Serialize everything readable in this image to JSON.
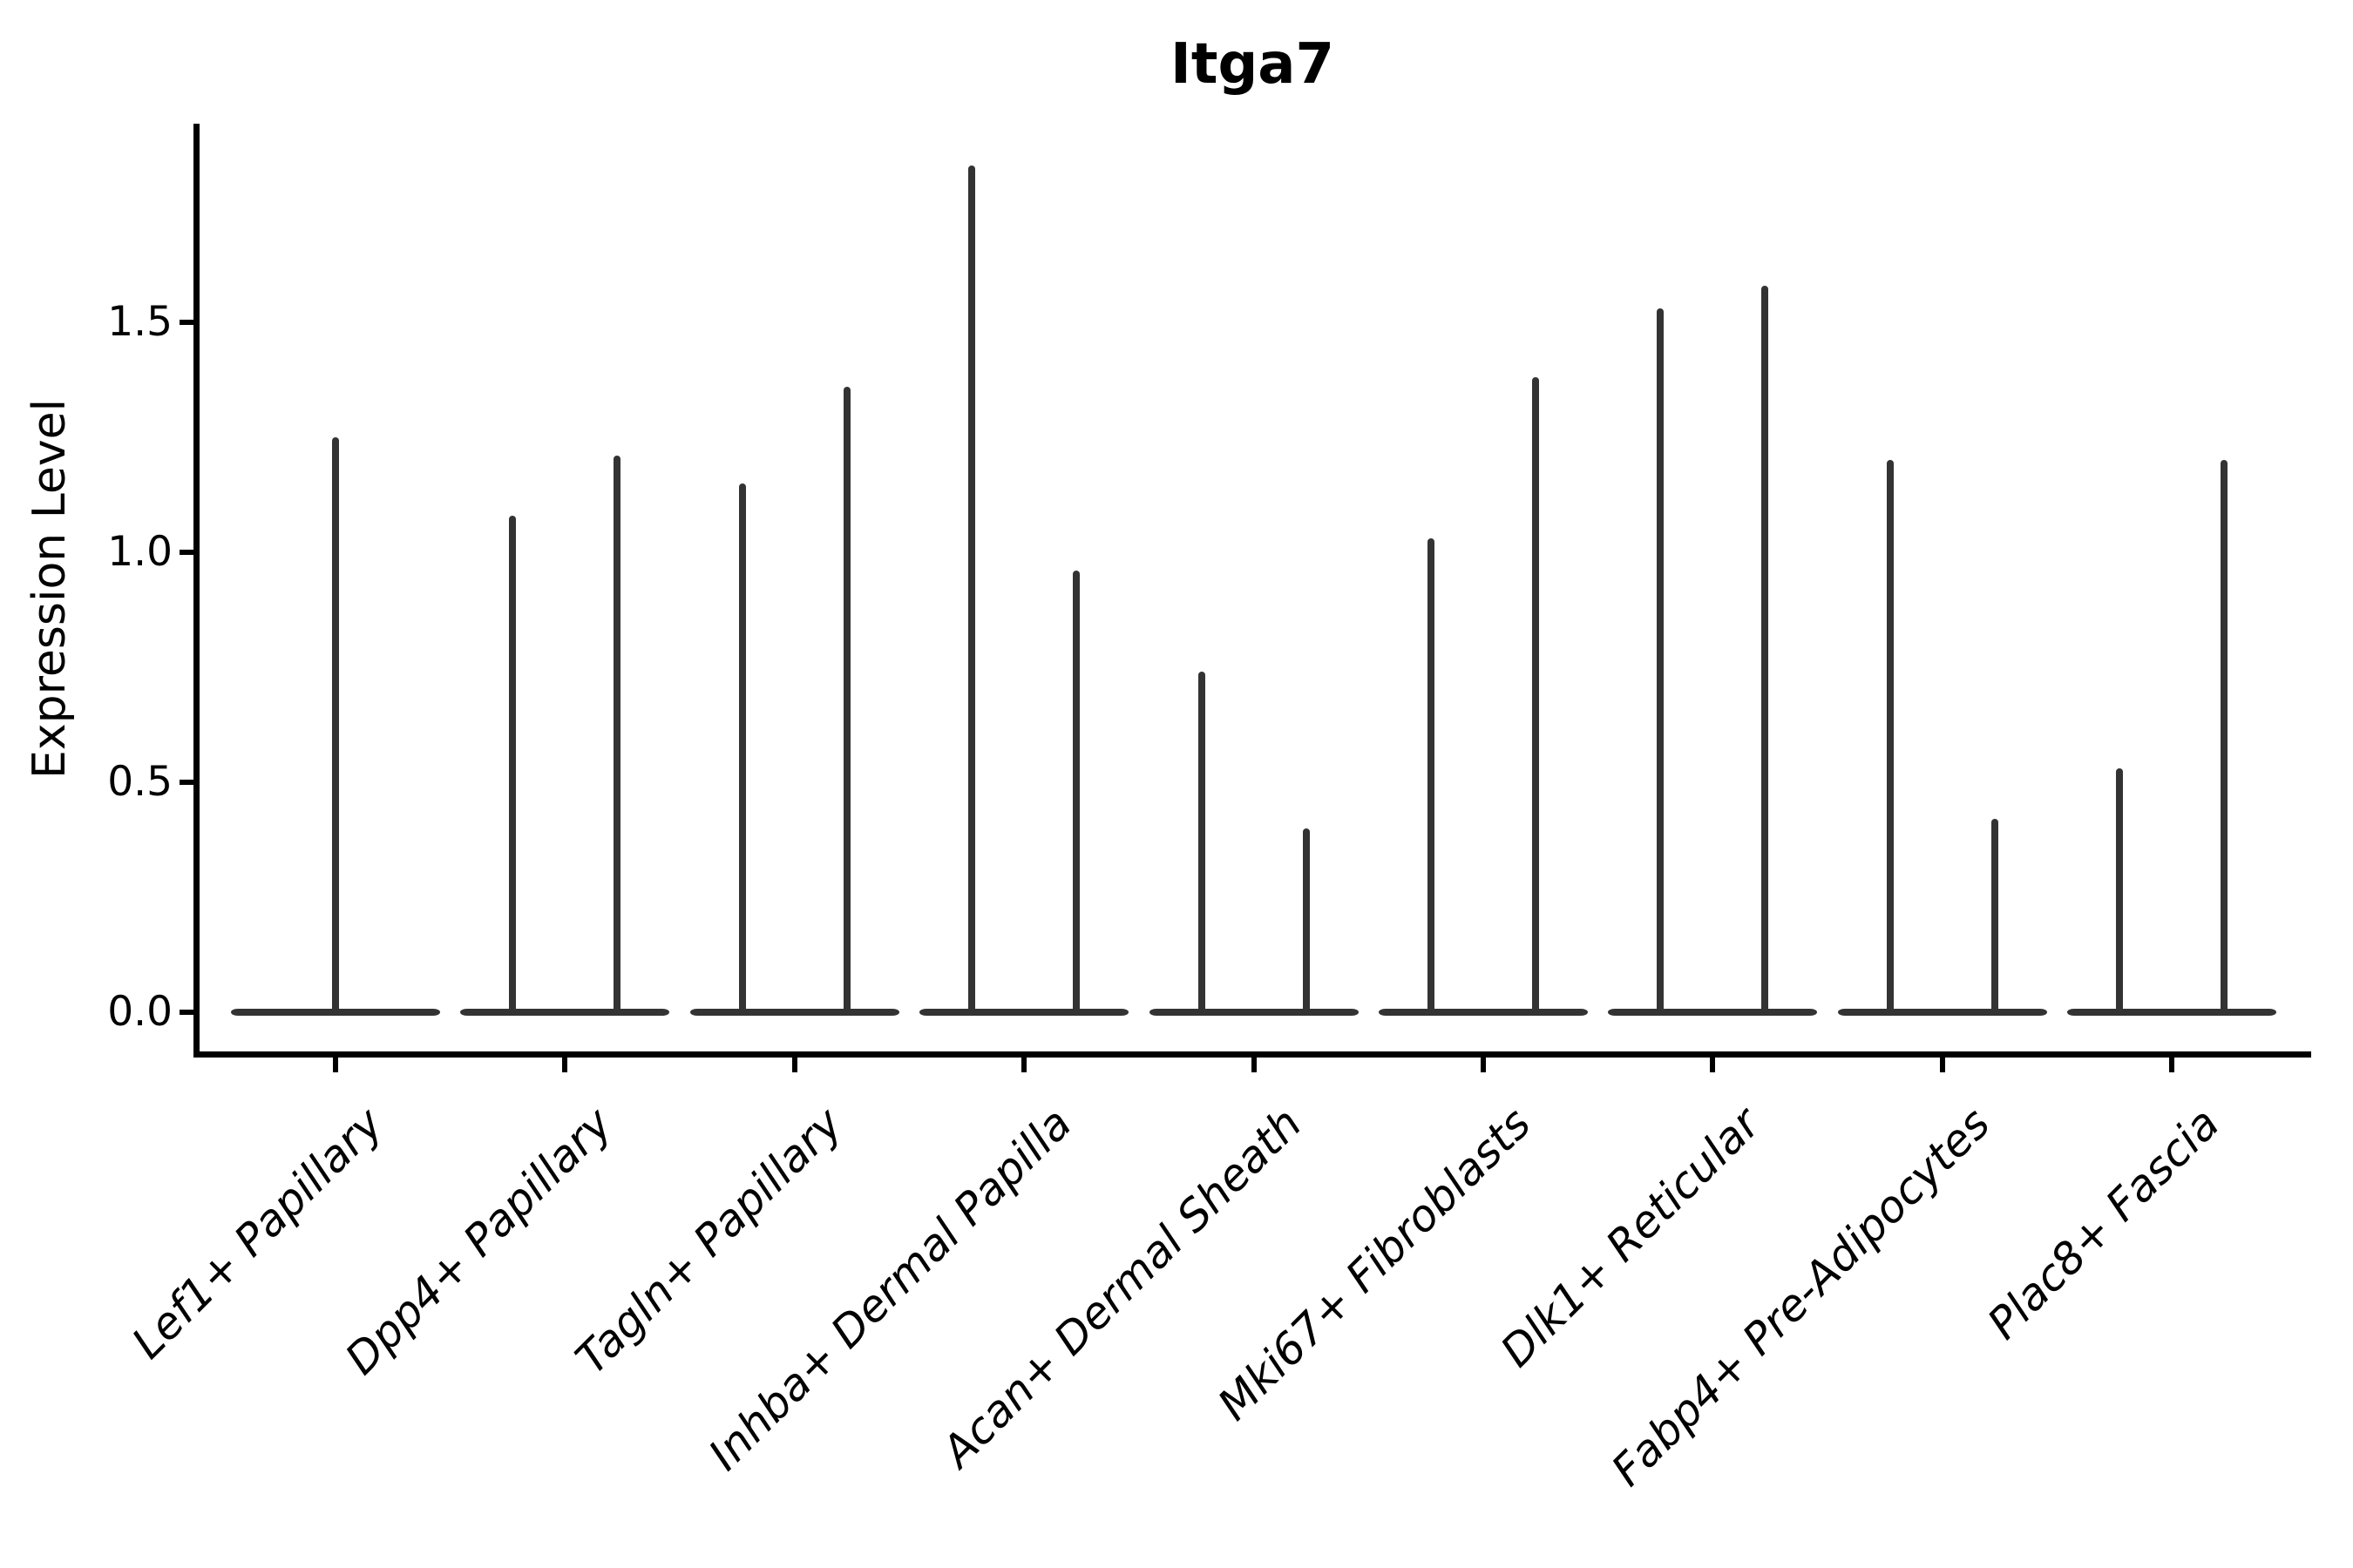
{
  "figure": {
    "title": "Itga7",
    "ylabel": "Expression Level"
  },
  "chart_data": {
    "type": "violin",
    "title": "Itga7",
    "xlabel": "",
    "ylabel": "Expression Level",
    "ylim": [
      0,
      1.93
    ],
    "yticks": [
      0,
      0.5,
      1.0,
      1.5
    ],
    "ytick_labels": [
      "0.0",
      "0.5",
      "1.0",
      "1.5"
    ],
    "grid": false,
    "legend": "none",
    "violin_color": "#333333",
    "axis_color": "#000000",
    "style_note": "Expression-level violin plot: each violin collapses to a flat horizontal bar at 0 with a very thin vertical spike rising to its maximum value. Every category holds two side-by-side violins (offset left/right of center) except the first category, which has a single full-width centered violin.",
    "categories": [
      "Lef1+ Papillary",
      "Dpp4+ Papillary",
      "Tagln+ Papillary",
      "Inhba+ Dermal Papilla",
      "Acan+ Dermal Sheath",
      "Mki67+ Fibroblasts",
      "Dlk1+ Reticular",
      "Fabp4+ Pre-Adipocytes",
      "Plac8+ Fascia"
    ],
    "violins": [
      {
        "category": "Lef1+ Papillary",
        "spike_maxima": [
          1.25
        ]
      },
      {
        "category": "Dpp4+ Papillary",
        "spike_maxima": [
          1.08,
          1.21
        ]
      },
      {
        "category": "Tagln+ Papillary",
        "spike_maxima": [
          1.15,
          1.36
        ]
      },
      {
        "category": "Inhba+ Dermal Papilla",
        "spike_maxima": [
          1.84,
          0.96
        ]
      },
      {
        "category": "Acan+ Dermal Sheath",
        "spike_maxima": [
          0.74,
          0.4
        ]
      },
      {
        "category": "Mki67+ Fibroblasts",
        "spike_maxima": [
          1.03,
          1.38
        ]
      },
      {
        "category": "Dlk1+ Reticular",
        "spike_maxima": [
          1.53,
          1.58
        ]
      },
      {
        "category": "Fabp4+ Pre-Adipocytes",
        "spike_maxima": [
          1.2,
          0.42
        ]
      },
      {
        "category": "Plac8+ Fascia",
        "spike_maxima": [
          0.53,
          1.2
        ]
      }
    ]
  }
}
